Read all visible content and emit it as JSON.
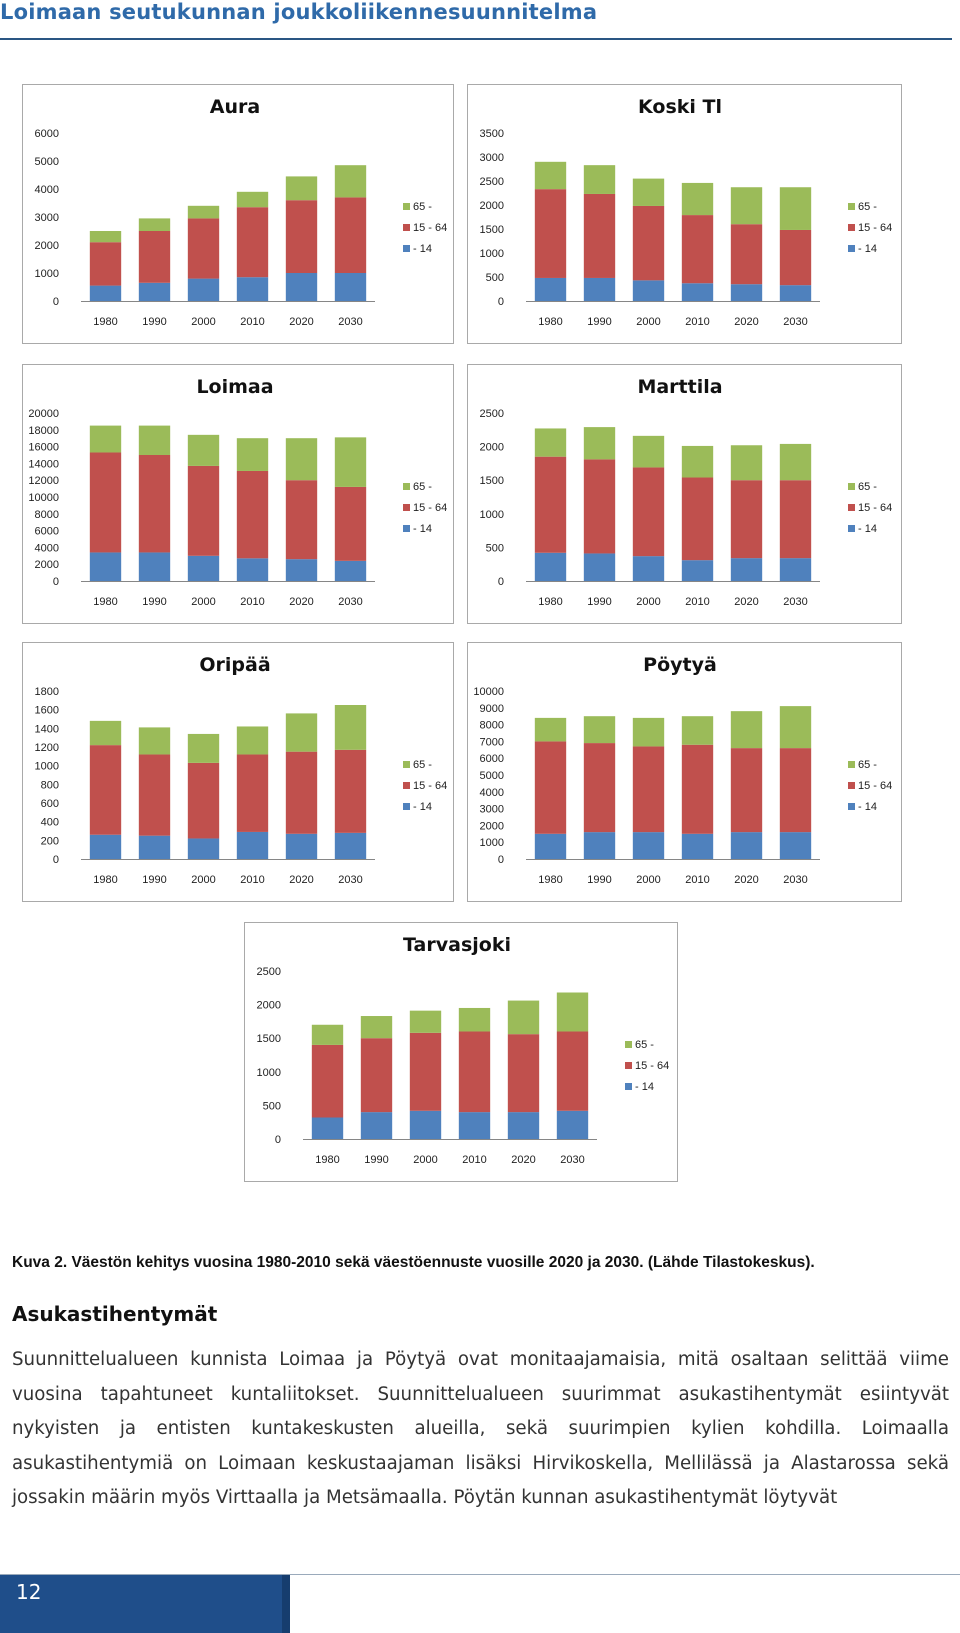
{
  "header": {
    "title": "Loimaan seutukunnan joukkoliikennesuunnitelma"
  },
  "colors": {
    "age_0_14": "#4f81bd",
    "age_15_64": "#c0504d",
    "age_65_plus": "#9bbb59",
    "header": "#2f6aa9",
    "footer": "#1f4e8a"
  },
  "legend": [
    "65 -",
    "15 - 64",
    "- 14"
  ],
  "chart_data": [
    {
      "type": "bar",
      "stacked": true,
      "title": "Aura",
      "categories": [
        "1980",
        "1990",
        "2000",
        "2010",
        "2020",
        "2030"
      ],
      "yticks": [
        "0",
        "1000",
        "2000",
        "3000",
        "4000",
        "5000",
        "6000"
      ],
      "ylim": [
        0,
        6000
      ],
      "series": [
        {
          "name": "- 14",
          "values": [
            550,
            650,
            800,
            850,
            1000,
            1000
          ]
        },
        {
          "name": "15 - 64",
          "values": [
            1550,
            1850,
            2150,
            2500,
            2600,
            2700
          ]
        },
        {
          "name": "65 -",
          "values": [
            400,
            450,
            450,
            550,
            850,
            1150
          ]
        }
      ]
    },
    {
      "type": "bar",
      "stacked": true,
      "title": "Koski Tl",
      "categories": [
        "1980",
        "1990",
        "2000",
        "2010",
        "2020",
        "2030"
      ],
      "yticks": [
        "0",
        "500",
        "1000",
        "1500",
        "2000",
        "2500",
        "3000",
        "3500"
      ],
      "ylim": [
        0,
        3500
      ],
      "series": [
        {
          "name": "- 14",
          "values": [
            480,
            480,
            430,
            370,
            350,
            330
          ]
        },
        {
          "name": "15 - 64",
          "values": [
            1850,
            1750,
            1550,
            1420,
            1250,
            1150
          ]
        },
        {
          "name": "65 -",
          "values": [
            570,
            600,
            570,
            670,
            770,
            890
          ]
        }
      ]
    },
    {
      "type": "bar",
      "stacked": true,
      "title": "Loimaa",
      "categories": [
        "1980",
        "1990",
        "2000",
        "2010",
        "2020",
        "2030"
      ],
      "yticks": [
        "0",
        "2000",
        "4000",
        "6000",
        "8000",
        "10000",
        "12000",
        "14000",
        "16000",
        "18000",
        "20000"
      ],
      "ylim": [
        0,
        20000
      ],
      "series": [
        {
          "name": "- 14",
          "values": [
            3400,
            3400,
            3000,
            2700,
            2600,
            2400
          ]
        },
        {
          "name": "15 - 64",
          "values": [
            11900,
            11600,
            10700,
            10400,
            9400,
            8800
          ]
        },
        {
          "name": "65 -",
          "values": [
            3200,
            3500,
            3700,
            3900,
            5000,
            5900
          ]
        }
      ]
    },
    {
      "type": "bar",
      "stacked": true,
      "title": "Marttila",
      "categories": [
        "1980",
        "1990",
        "2000",
        "2010",
        "2020",
        "2030"
      ],
      "yticks": [
        "0",
        "500",
        "1000",
        "1500",
        "2000",
        "2500"
      ],
      "ylim": [
        0,
        2500
      ],
      "series": [
        {
          "name": "- 14",
          "values": [
            420,
            410,
            370,
            310,
            340,
            340
          ]
        },
        {
          "name": "15 - 64",
          "values": [
            1430,
            1400,
            1320,
            1230,
            1160,
            1160
          ]
        },
        {
          "name": "65 -",
          "values": [
            420,
            480,
            470,
            470,
            520,
            540
          ]
        }
      ]
    },
    {
      "type": "bar",
      "stacked": true,
      "title": "Oripää",
      "categories": [
        "1980",
        "1990",
        "2000",
        "2010",
        "2020",
        "2030"
      ],
      "yticks": [
        "0",
        "200",
        "400",
        "600",
        "800",
        "1000",
        "1200",
        "1400",
        "1600",
        "1800"
      ],
      "ylim": [
        0,
        1800
      ],
      "series": [
        {
          "name": "- 14",
          "values": [
            260,
            250,
            220,
            290,
            270,
            280
          ]
        },
        {
          "name": "15 - 64",
          "values": [
            960,
            870,
            810,
            830,
            880,
            890
          ]
        },
        {
          "name": "65 -",
          "values": [
            260,
            290,
            310,
            300,
            410,
            480
          ]
        }
      ]
    },
    {
      "type": "bar",
      "stacked": true,
      "title": "Pöytyä",
      "categories": [
        "1980",
        "1990",
        "2000",
        "2010",
        "2020",
        "2030"
      ],
      "yticks": [
        "0",
        "1000",
        "2000",
        "3000",
        "4000",
        "5000",
        "6000",
        "7000",
        "8000",
        "9000",
        "10000"
      ],
      "ylim": [
        0,
        10000
      ],
      "series": [
        {
          "name": "- 14",
          "values": [
            1500,
            1600,
            1600,
            1500,
            1600,
            1600
          ]
        },
        {
          "name": "15 - 64",
          "values": [
            5500,
            5300,
            5100,
            5300,
            5000,
            5000
          ]
        },
        {
          "name": "65 -",
          "values": [
            1400,
            1600,
            1700,
            1700,
            2200,
            2500
          ]
        }
      ]
    },
    {
      "type": "bar",
      "stacked": true,
      "title": "Tarvasjoki",
      "categories": [
        "1980",
        "1990",
        "2000",
        "2010",
        "2020",
        "2030"
      ],
      "yticks": [
        "0",
        "500",
        "1000",
        "1500",
        "2000",
        "2500"
      ],
      "ylim": [
        0,
        2500
      ],
      "series": [
        {
          "name": "- 14",
          "values": [
            320,
            400,
            420,
            400,
            400,
            420
          ]
        },
        {
          "name": "15 - 64",
          "values": [
            1080,
            1100,
            1160,
            1200,
            1160,
            1180
          ]
        },
        {
          "name": "65 -",
          "values": [
            300,
            330,
            330,
            350,
            500,
            580
          ]
        }
      ]
    }
  ],
  "caption": "Kuva 2. Väestön kehitys vuosina 1980-2010 sekä väestöennuste vuosille 2020 ja 2030. (Lähde Tilastokeskus).",
  "section_heading": "Asukastihentymät",
  "body_text": "Suunnittelualueen kunnista Loimaa ja Pöytyä ovat monitaajamaisia, mitä osaltaan selittää viime vuosina tapahtuneet kuntaliitokset. Suunnittelualueen suurimmat asukastihentymät esiintyvät nykyisten ja entisten kuntakeskusten alueilla, sekä suurimpien kylien kohdilla. Loimaalla asukastihentymiä on Loimaan keskustaajaman lisäksi Hirvikoskella, Mellilässä ja Alastarossa sekä jossakin määrin myös Virttaalla ja Metsämaalla. Pöytän kunnan asukastihentymät löytyvät",
  "footer": {
    "page_number": "12"
  }
}
